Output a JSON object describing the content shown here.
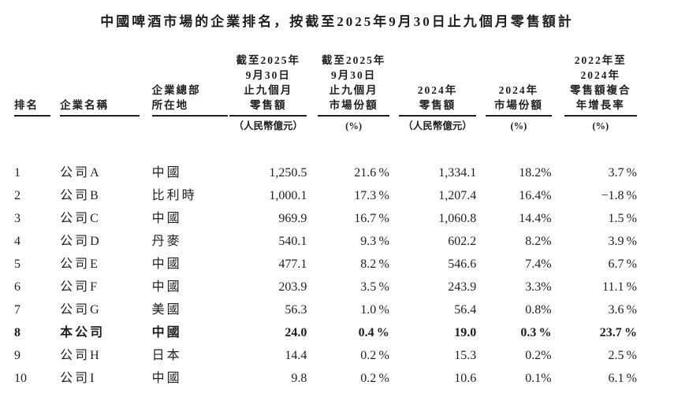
{
  "page": {
    "title": "中國啤酒市場的企業排名，按截至2025年9月30日止九個月零售額計",
    "colors": {
      "text": "#1f1f1f",
      "background": "#ffffff"
    }
  },
  "table": {
    "columns": [
      {
        "id": "rank",
        "align": "left",
        "header_lines": [
          "排名"
        ],
        "unit": ""
      },
      {
        "id": "company",
        "align": "left",
        "header_lines": [
          "企業名稱"
        ],
        "unit": ""
      },
      {
        "id": "hq",
        "align": "left",
        "header_lines": [
          "企業總部",
          "所在地"
        ],
        "unit": ""
      },
      {
        "id": "retail2025",
        "align": "right",
        "header_lines": [
          "截至2025年",
          "9月30日",
          "止九個月",
          "零售額"
        ],
        "unit": "（人民幣億元）"
      },
      {
        "id": "share2025",
        "align": "right",
        "header_lines": [
          "截至2025年",
          "9月30日",
          "止九個月",
          "市場份額"
        ],
        "unit": "(%)"
      },
      {
        "id": "retail2024",
        "align": "right",
        "header_lines": [
          "2024年",
          "零售額"
        ],
        "unit": "（人民幣億元）"
      },
      {
        "id": "share2024",
        "align": "right",
        "header_lines": [
          "2024年",
          "市場份額"
        ],
        "unit": "(%)"
      },
      {
        "id": "cagr",
        "align": "right",
        "header_lines": [
          "2022年至",
          "2024年",
          "零售額複合",
          "年增長率"
        ],
        "unit": "(%)"
      }
    ],
    "rows": [
      {
        "bold": false,
        "cells": [
          "1",
          "公司A",
          "中國",
          "1,250.5",
          "21.6 %",
          "1,334.1",
          "18.2%",
          "3.7 %"
        ]
      },
      {
        "bold": false,
        "cells": [
          "2",
          "公司B",
          "比利時",
          "1,000.1",
          "17.3 %",
          "1,207.4",
          "16.4%",
          "−1.8 %"
        ]
      },
      {
        "bold": false,
        "cells": [
          "3",
          "公司C",
          "中國",
          "969.9",
          "16.7 %",
          "1,060.8",
          "14.4%",
          "1.5 %"
        ]
      },
      {
        "bold": false,
        "cells": [
          "4",
          "公司D",
          "丹麥",
          "540.1",
          "9.3 %",
          "602.2",
          "8.2%",
          "3.9 %"
        ]
      },
      {
        "bold": false,
        "cells": [
          "5",
          "公司E",
          "中國",
          "477.1",
          "8.2 %",
          "546.6",
          "7.4%",
          "6.7 %"
        ]
      },
      {
        "bold": false,
        "cells": [
          "6",
          "公司F",
          "中國",
          "203.9",
          "3.5 %",
          "243.9",
          "3.3%",
          "11.1 %"
        ]
      },
      {
        "bold": false,
        "cells": [
          "7",
          "公司G",
          "美國",
          "56.3",
          "1.0 %",
          "56.4",
          "0.8%",
          "3.6 %"
        ]
      },
      {
        "bold": true,
        "cells": [
          "8",
          "本公司",
          "中國",
          "24.0",
          "0.4 %",
          "19.0",
          "0.3 %",
          "23.7 %"
        ]
      },
      {
        "bold": false,
        "cells": [
          "9",
          "公司H",
          "日本",
          "14.4",
          "0.2 %",
          "15.3",
          "0.2%",
          "2.5 %"
        ]
      },
      {
        "bold": false,
        "cells": [
          "10",
          "公司I",
          "中國",
          "9.8",
          "0.2 %",
          "10.6",
          "0.1%",
          "6.1 %"
        ]
      }
    ]
  }
}
